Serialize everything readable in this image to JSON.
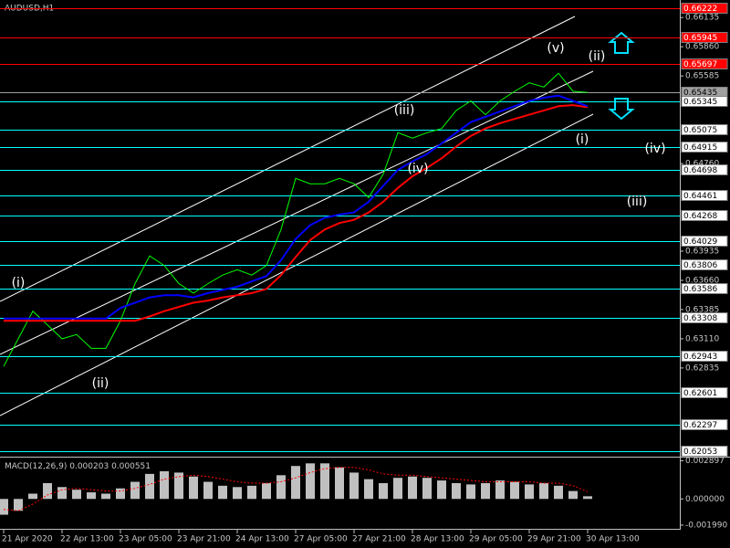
{
  "chart_data": [
    {
      "type": "line",
      "title": "AUDUSD,H1",
      "categories": [
        "21 Apr 2020",
        null,
        null,
        null,
        "22 Apr 13:00",
        null,
        null,
        null,
        "23 Apr 05:00",
        null,
        null,
        null,
        "23 Apr 21:00",
        null,
        null,
        null,
        "24 Apr 13:00",
        null,
        null,
        null,
        "27 Apr 05:00",
        null,
        null,
        null,
        "27 Apr 21:00",
        null,
        null,
        null,
        "28 Apr 13:00",
        null,
        null,
        null,
        "29 Apr 05:00",
        null,
        null,
        null,
        "29 Apr 21:00",
        null,
        null,
        null,
        "30 Apr 13:00"
      ],
      "series": [
        {
          "color": "#00ff00",
          "values": [
            0.6285,
            0.6311,
            0.6337,
            0.6324,
            0.6311,
            0.6315,
            0.6302,
            0.6302,
            0.6328,
            0.6363,
            0.6389,
            0.638,
            0.6363,
            0.6354,
            0.6363,
            0.6371,
            0.6376,
            0.6371,
            0.638,
            0.6414,
            0.6462,
            0.6457,
            0.6457,
            0.6462,
            0.6457,
            0.6444,
            0.6466,
            0.6505,
            0.65,
            0.6505,
            0.6509,
            0.6526,
            0.6535,
            0.6522,
            0.6535,
            0.6544,
            0.6552,
            0.6548,
            0.6561,
            0.6544,
            0.6543
          ]
        },
        {
          "color": "#ff0000",
          "values": [
            0.6328,
            0.6328,
            0.6328,
            0.6328,
            0.6328,
            0.6328,
            0.6328,
            0.6328,
            0.6328,
            0.6328,
            0.6332,
            0.6337,
            0.6341,
            0.6345,
            0.6347,
            0.635,
            0.6352,
            0.6354,
            0.6358,
            0.6371,
            0.6388,
            0.6404,
            0.6414,
            0.642,
            0.6423,
            0.643,
            0.644,
            0.6453,
            0.6464,
            0.6472,
            0.6481,
            0.6492,
            0.6502,
            0.6509,
            0.6514,
            0.6518,
            0.6522,
            0.6526,
            0.653,
            0.6531,
            0.6529
          ]
        },
        {
          "color": "#0000ff",
          "values": [
            0.633,
            0.633,
            0.633,
            0.633,
            0.633,
            0.633,
            0.633,
            0.633,
            0.634,
            0.6345,
            0.635,
            0.6352,
            0.6352,
            0.635,
            0.6354,
            0.6357,
            0.636,
            0.6365,
            0.637,
            0.6385,
            0.6405,
            0.6418,
            0.6425,
            0.6428,
            0.643,
            0.644,
            0.6455,
            0.647,
            0.6478,
            0.6485,
            0.6495,
            0.6505,
            0.6515,
            0.652,
            0.6525,
            0.653,
            0.6535,
            0.6538,
            0.654,
            0.6535,
            0.653
          ]
        }
      ],
      "ylim": [
        0.62,
        0.663
      ],
      "yticks": [
        0.66135,
        {
          "value": 0.6586,
          "label": "0.65860"
        },
        0.65585,
        {
          "value": 0.6476,
          "label": "0.64760"
        },
        0.63935,
        {
          "value": 0.6366,
          "label": "0.63660"
        },
        0.63385,
        {
          "value": 0.6311,
          "label": "0.63110"
        },
        0.62835
      ],
      "levels": [
        {
          "value": 0.66222,
          "color": "#ff0000"
        },
        {
          "value": 0.65945,
          "color": "#ff0000"
        },
        {
          "value": 0.65697,
          "color": "#ff0000"
        },
        {
          "value": 0.65435,
          "color": "#a0a0a0"
        },
        {
          "value": 0.65345,
          "color": "#00ffff"
        },
        {
          "value": 0.65075,
          "color": "#00ffff"
        },
        {
          "value": 0.64915,
          "color": "#00ffff"
        },
        {
          "value": 0.64698,
          "color": "#00ffff"
        },
        {
          "value": 0.64461,
          "color": "#00ffff"
        },
        {
          "value": 0.64268,
          "color": "#00ffff"
        },
        {
          "value": 0.64029,
          "color": "#00ffff"
        },
        {
          "value": 0.63806,
          "color": "#00ffff"
        },
        {
          "value": 0.63586,
          "color": "#00ffff"
        },
        {
          "value": 0.63308,
          "color": "#00ffff"
        },
        {
          "value": 0.62943,
          "color": "#00ffff"
        },
        {
          "value": 0.62601,
          "color": "#00ffff"
        },
        {
          "value": 0.62297,
          "color": "#00ffff"
        },
        {
          "value": 0.62053,
          "color": "#00ffff"
        }
      ],
      "annotations": [
        "(i)",
        "(ii)",
        "(iii)",
        "(iv)",
        "(v)",
        "(ii)",
        "(i)",
        "(iv)",
        "(iii)"
      ]
    },
    {
      "type": "bar",
      "title": "MACD(12,26,9)",
      "series": [
        {
          "color": "#c0c0c0",
          "values": [
            -0.0012,
            -0.0009,
            0.0004,
            0.0012,
            0.0009,
            0.0007,
            0.0005,
            0.0004,
            0.0008,
            0.0013,
            0.0019,
            0.0021,
            0.002,
            0.0017,
            0.0013,
            0.001,
            0.0009,
            0.001,
            0.0012,
            0.0018,
            0.0025,
            0.0027,
            0.0027,
            0.0024,
            0.002,
            0.0015,
            0.0012,
            0.0016,
            0.0017,
            0.0016,
            0.0014,
            0.0012,
            0.0011,
            0.0012,
            0.0014,
            0.0013,
            0.0011,
            0.0012,
            0.001,
            0.0006,
            0.000203
          ]
        },
        {
          "type": "line",
          "color": "#ff0000",
          "values": [
            -0.0008,
            -0.0009,
            -0.0004,
            0.0003,
            0.0007,
            0.0008,
            0.0007,
            0.0006,
            0.0006,
            0.0008,
            0.0011,
            0.0015,
            0.0017,
            0.0018,
            0.0017,
            0.0015,
            0.0013,
            0.0012,
            0.0012,
            0.0013,
            0.0016,
            0.002,
            0.0023,
            0.0024,
            0.0024,
            0.0022,
            0.0019,
            0.0018,
            0.0018,
            0.0017,
            0.0016,
            0.0015,
            0.0014,
            0.0013,
            0.0013,
            0.0013,
            0.0013,
            0.0012,
            0.0012,
            0.001,
            0.000551
          ]
        }
      ],
      "ylim": [
        -0.0022,
        0.003
      ],
      "yticks": [
        0.002897,
        {
          "value": 0,
          "label": "0.000000"
        },
        {
          "value": -0.00199,
          "label": "-0.001990"
        }
      ]
    }
  ]
}
